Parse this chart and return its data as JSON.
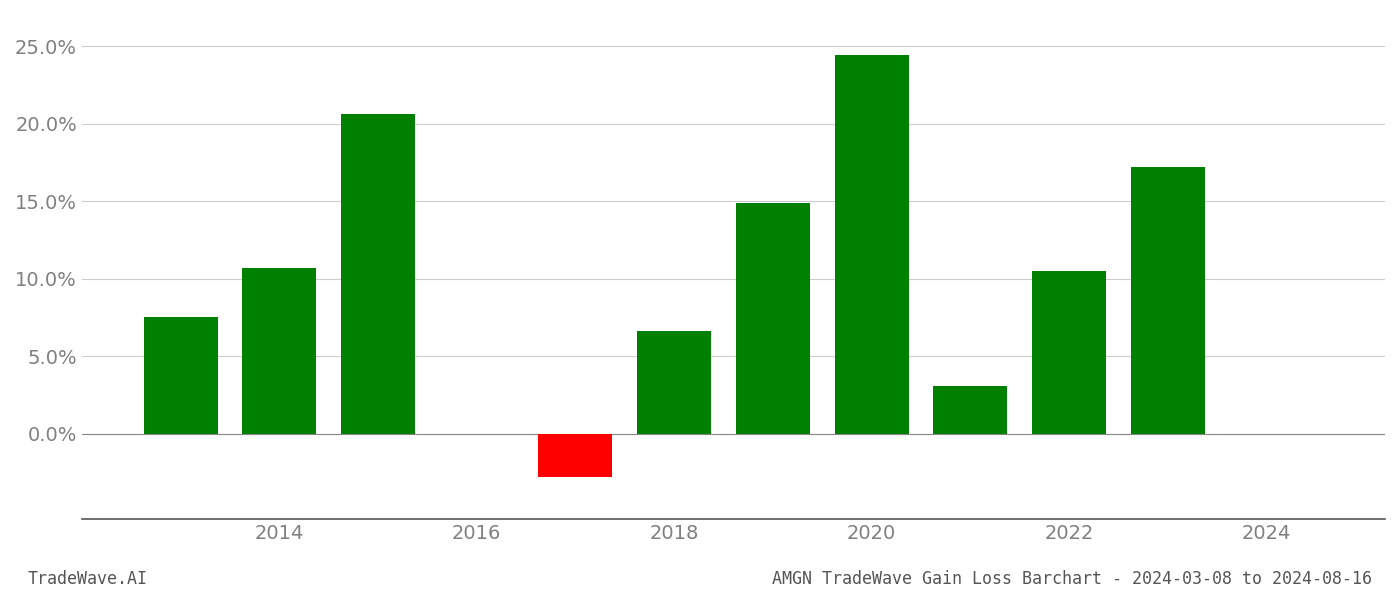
{
  "years": [
    2013,
    2014,
    2015,
    2017,
    2018,
    2019,
    2020,
    2021,
    2022,
    2023
  ],
  "values": [
    0.075,
    0.107,
    0.206,
    -0.028,
    0.066,
    0.149,
    0.244,
    0.031,
    0.105,
    0.172
  ],
  "colors": [
    "#008000",
    "#008000",
    "#008000",
    "#ff0000",
    "#008000",
    "#008000",
    "#008000",
    "#008000",
    "#008000",
    "#008000"
  ],
  "ylim": [
    -0.055,
    0.27
  ],
  "yticks": [
    0.0,
    0.05,
    0.1,
    0.15,
    0.2,
    0.25
  ],
  "xlim": [
    2012.0,
    2025.2
  ],
  "xticks": [
    2014,
    2016,
    2018,
    2020,
    2022,
    2024
  ],
  "bar_width": 0.75,
  "title": "AMGN TradeWave Gain Loss Barchart - 2024-03-08 to 2024-08-16",
  "watermark": "TradeWave.AI",
  "background_color": "#ffffff",
  "grid_color": "#cccccc",
  "title_fontsize": 12,
  "watermark_fontsize": 12,
  "tick_fontsize": 14,
  "axis_label_color": "#808080"
}
